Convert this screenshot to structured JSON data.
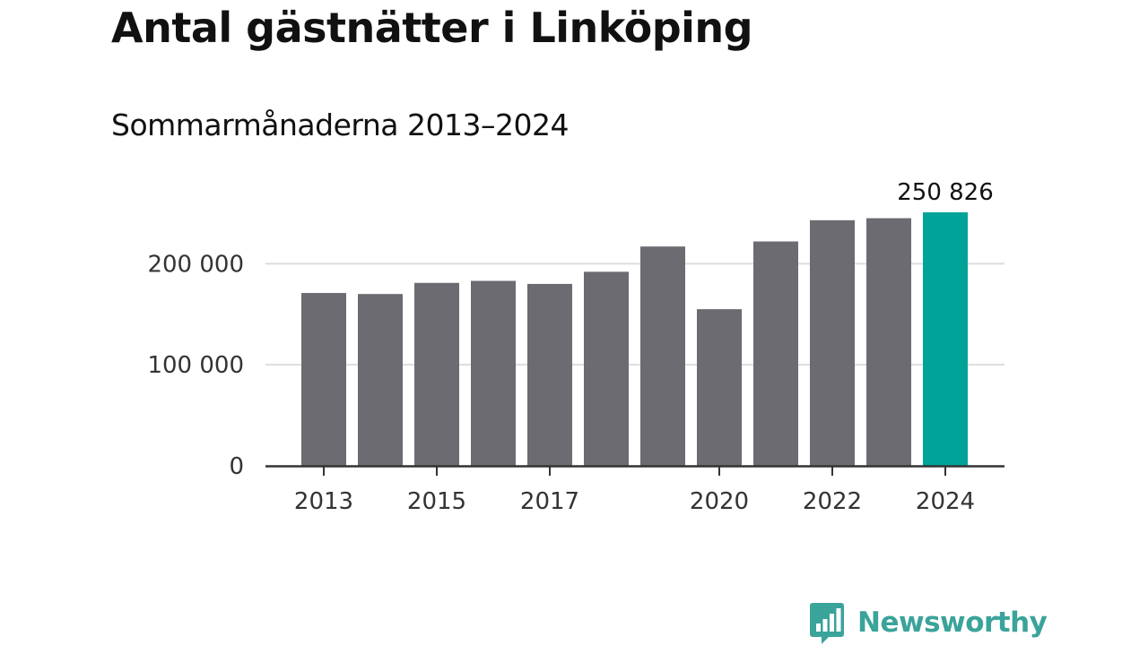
{
  "chart_data": {
    "type": "bar",
    "title": "Antal gästnätter i Linköping",
    "subtitle": "Sommarmånaderna 2013–2024",
    "categories": [
      "2013",
      "2014",
      "2015",
      "2016",
      "2017",
      "2018",
      "2019",
      "2020",
      "2021",
      "2022",
      "2023",
      "2024"
    ],
    "values": [
      171000,
      170000,
      181000,
      183000,
      180000,
      192000,
      217000,
      155000,
      222000,
      243000,
      245000,
      250826
    ],
    "x_tick_labels": [
      "2013",
      "2015",
      "2017",
      "2020",
      "2022",
      "2024"
    ],
    "y_tick_labels": [
      "0",
      "100 000",
      "200 000"
    ],
    "y_ticks": [
      0,
      100000,
      200000
    ],
    "ylim": [
      0,
      250826
    ],
    "highlight": {
      "category": "2024",
      "label": "250 826"
    },
    "grid": true,
    "legend": "none",
    "colors": {
      "bar": "#6c6b72",
      "highlight": "#00a398",
      "grid": "#dddddd",
      "axis": "#333333"
    }
  },
  "branding": {
    "logo_text": "Newsworthy",
    "logo_color": "#3aa39a",
    "logo_icon": "bar-chart-speech-bubble-icon"
  }
}
